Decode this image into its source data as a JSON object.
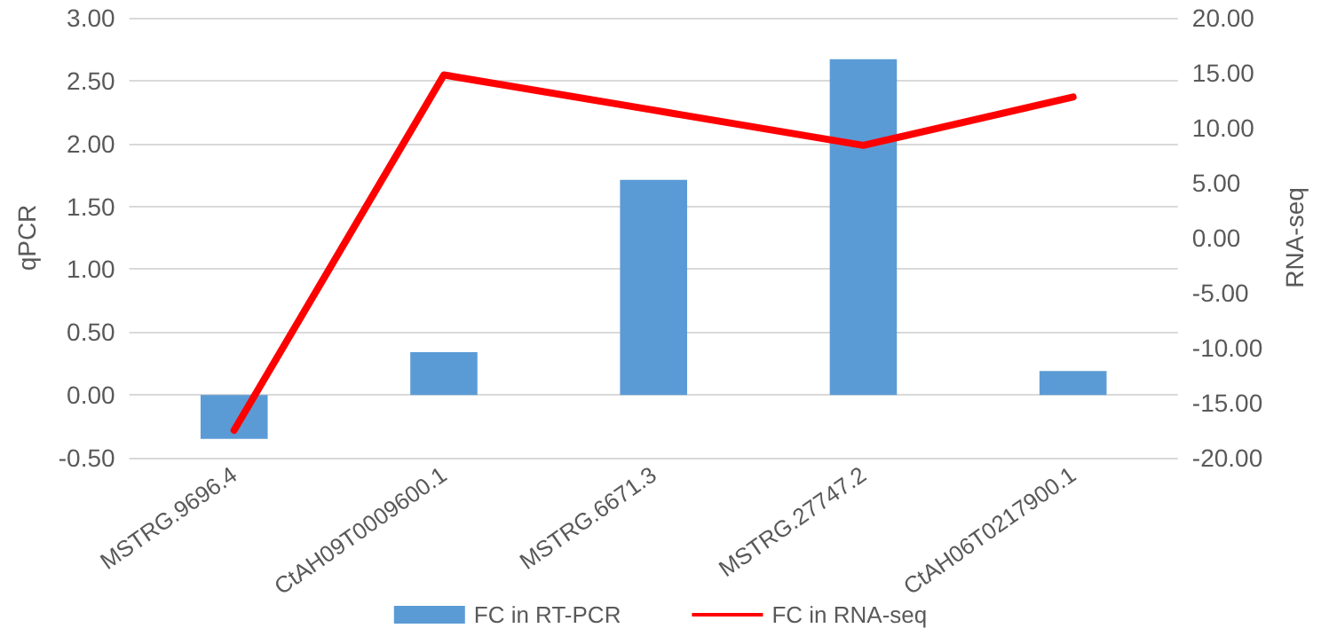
{
  "chart_data": {
    "type": "bar",
    "ylabel": "qPCR",
    "y2label": "RNA-seq",
    "categories": [
      "MSTRG.9696.4",
      "CtAH09T0009600.1",
      "MSTRG.6671.3",
      "MSTRG.27747.2",
      "CtAH06T0217900.1"
    ],
    "series": [
      {
        "name": "FC in RT-PCR",
        "color": "#5b9bd5",
        "values": [
          -0.35,
          0.34,
          1.71,
          2.67,
          0.19
        ]
      },
      {
        "name": "FC in RNA-seq",
        "type": "line",
        "axis": "y2",
        "color": "#ff0000",
        "values": [
          -17.5,
          14.8,
          11.6,
          8.4,
          12.8
        ]
      }
    ],
    "ylim": [
      -0.5,
      3
    ],
    "yticks": [
      {
        "value": -0.5,
        "label": "-0.50"
      },
      {
        "value": 0,
        "label": "0.00"
      },
      {
        "value": 0.5,
        "label": "0.50"
      },
      {
        "value": 1,
        "label": "1.00"
      },
      {
        "value": 1.5,
        "label": "1.50"
      },
      {
        "value": 2,
        "label": "2.00"
      },
      {
        "value": 2.5,
        "label": "2.50"
      },
      {
        "value": 3,
        "label": "3.00"
      }
    ],
    "y2lim": [
      -20,
      20
    ],
    "y2ticks": [
      {
        "value": -20,
        "label": "-20.00"
      },
      {
        "value": -15,
        "label": "-15.00"
      },
      {
        "value": -10,
        "label": "-10.00"
      },
      {
        "value": -5,
        "label": "-5.00"
      },
      {
        "value": 0,
        "label": "0.00"
      },
      {
        "value": 5,
        "label": "5.00"
      },
      {
        "value": 10,
        "label": "10.00"
      },
      {
        "value": 15,
        "label": "15.00"
      },
      {
        "value": 20,
        "label": "20.00"
      }
    ],
    "grid": "y",
    "legend": "bottom",
    "marker": "none"
  }
}
